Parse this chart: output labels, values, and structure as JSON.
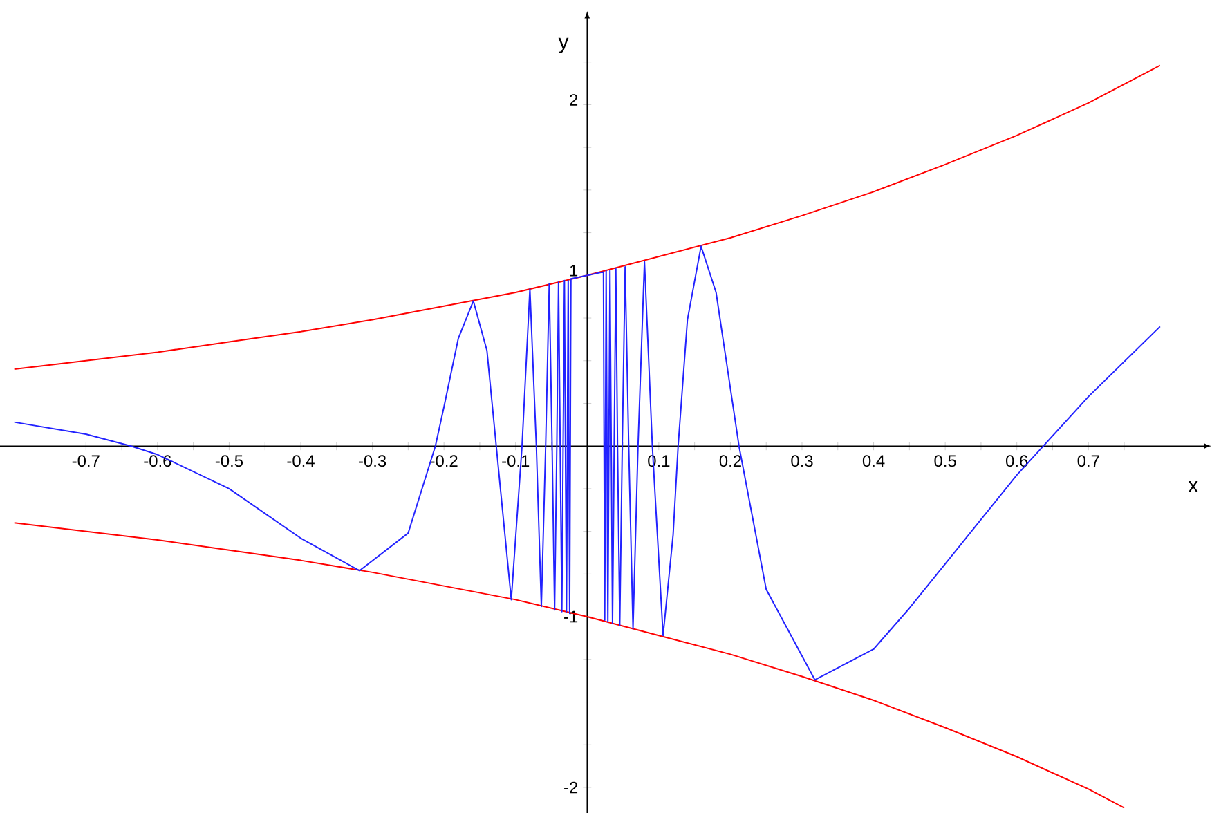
{
  "chart_data": {
    "type": "line",
    "xlabel": "x",
    "ylabel": "y",
    "grid": false,
    "xlim": [
      -0.82,
      0.86
    ],
    "ylim": [
      -2.15,
      2.5
    ],
    "xticks": [
      {
        "value": -0.75,
        "label": null
      },
      -0.7,
      {
        "value": -0.65,
        "label": null
      },
      -0.6,
      {
        "value": -0.55,
        "label": null
      },
      -0.5,
      {
        "value": -0.45,
        "label": null
      },
      -0.4,
      {
        "value": -0.35,
        "label": null
      },
      -0.3,
      {
        "value": -0.25,
        "label": null
      },
      -0.2,
      {
        "value": -0.15,
        "label": null
      },
      -0.1,
      {
        "value": -0.05,
        "label": null
      },
      {
        "value": 0.05,
        "label": null
      },
      0.1,
      {
        "value": 0.15,
        "label": null
      },
      0.2,
      {
        "value": 0.25,
        "label": null
      },
      0.3,
      {
        "value": 0.35,
        "label": null
      },
      0.4,
      {
        "value": 0.45,
        "label": null
      },
      0.5,
      {
        "value": 0.55,
        "label": null
      },
      0.6,
      {
        "value": 0.65,
        "label": null
      },
      0.7,
      {
        "value": 0.75,
        "label": null
      }
    ],
    "yticks": [
      -2,
      {
        "value": -1.75,
        "label": null
      },
      {
        "value": -1.5,
        "label": null
      },
      {
        "value": -1.25,
        "label": null
      },
      -1,
      {
        "value": -0.75,
        "label": null
      },
      {
        "value": -0.5,
        "label": null
      },
      {
        "value": -0.25,
        "label": null
      },
      {
        "value": 0.25,
        "label": null
      },
      {
        "value": 0.5,
        "label": null
      },
      {
        "value": 0.75,
        "label": null
      },
      1,
      {
        "value": 1.25,
        "label": null
      },
      {
        "value": 1.5,
        "label": null
      },
      {
        "value": 1.75,
        "label": null
      },
      2,
      {
        "value": 2.25,
        "label": null
      }
    ],
    "series": [
      {
        "color": "#ff0000",
        "x": [
          -0.8,
          -0.7,
          -0.6,
          -0.5,
          -0.4,
          -0.3,
          -0.2,
          -0.1,
          0,
          0.1,
          0.2,
          0.3,
          0.4,
          0.5,
          0.6,
          0.7,
          0.8
        ],
        "values": [
          0.45,
          0.5,
          0.55,
          0.61,
          0.67,
          0.74,
          0.82,
          0.9,
          1,
          1.11,
          1.22,
          1.35,
          1.49,
          1.65,
          1.82,
          2.01,
          2.23
        ]
      },
      {
        "color": "#ff0000",
        "x": [
          -0.8,
          -0.7,
          -0.6,
          -0.5,
          -0.4,
          -0.3,
          -0.2,
          -0.1,
          0,
          0.1,
          0.2,
          0.3,
          0.4,
          0.5,
          0.6,
          0.7,
          0.75
        ],
        "values": [
          -0.45,
          -0.5,
          -0.55,
          -0.61,
          -0.67,
          -0.74,
          -0.82,
          -0.9,
          -1,
          -1.11,
          -1.22,
          -1.35,
          -1.49,
          -1.65,
          -1.82,
          -2.01,
          -2.12
        ]
      },
      {
        "color": "#2222ff",
        "x": [
          -0.8,
          -0.7,
          -0.637,
          -0.6,
          -0.5,
          -0.4,
          -0.318,
          -0.25,
          -0.212,
          -0.2,
          -0.18,
          -0.159,
          -0.14,
          -0.127,
          -0.106,
          -0.091,
          -0.08,
          -0.071,
          -0.064,
          -0.058,
          -0.053,
          -0.049,
          -0.0455,
          -0.0424,
          -0.04,
          -0.0354,
          -0.0318,
          -0.0289,
          -0.0265,
          -0.0245,
          -0.0227,
          0.0227,
          0.0245,
          0.0265,
          0.0289,
          0.0318,
          0.0354,
          0.04,
          0.0424,
          0.0455,
          0.049,
          0.053,
          0.058,
          0.064,
          0.071,
          0.08,
          0.091,
          0.106,
          0.12,
          0.127,
          0.14,
          0.159,
          0.18,
          0.212,
          0.25,
          0.318,
          0.4,
          0.45,
          0.5,
          0.6,
          0.637,
          0.7,
          0.8
        ],
        "values": [
          0.14,
          0.07,
          0,
          -0.05,
          -0.25,
          -0.54,
          -0.73,
          -0.51,
          0,
          0.23,
          0.63,
          0.85,
          0.56,
          0,
          -0.9,
          0,
          0.92,
          0,
          -0.94,
          0,
          0.95,
          0,
          -0.96,
          0,
          0.96,
          -0.97,
          0.97,
          -0.97,
          0.97,
          -0.98,
          0.98,
          1.02,
          -1.02,
          1.03,
          -1.03,
          1.03,
          -1.04,
          1.04,
          0,
          -1.05,
          0,
          1.05,
          0,
          -1.07,
          0,
          1.08,
          0,
          -1.11,
          -0.52,
          0,
          0.74,
          1.17,
          0.9,
          0,
          -0.84,
          -1.37,
          -1.19,
          -0.95,
          -0.69,
          -0.17,
          0,
          0.29,
          0.7
        ]
      }
    ]
  }
}
